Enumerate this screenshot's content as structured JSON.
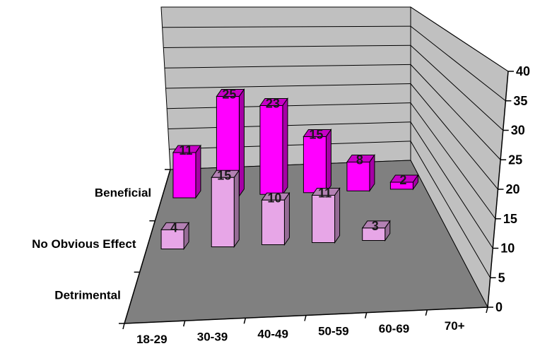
{
  "chart_data": {
    "type": "bar",
    "title": "",
    "xlabel": "",
    "ylabel": "",
    "categories": [
      "18-29",
      "30-39",
      "40-49",
      "50-59",
      "60-69",
      "70+"
    ],
    "series": [
      {
        "name": "Beneficial",
        "values": [
          11,
          25,
          23,
          15,
          8,
          2
        ]
      },
      {
        "name": "No Obvious Effect",
        "values": [
          4,
          15,
          10,
          11,
          3,
          null
        ]
      },
      {
        "name": "Detrimental",
        "values": [
          null,
          null,
          null,
          null,
          null,
          null
        ]
      }
    ],
    "ylim": [
      0,
      40
    ],
    "yticks": [
      "0",
      "5",
      "10",
      "15",
      "20",
      "25",
      "30",
      "35",
      "40"
    ],
    "grid": true,
    "colors": {
      "Beneficial": "#ff00ff",
      "No Obvious Effect": "#e7a6e7",
      "floor": "#808080",
      "walls": "#c0c0c0"
    }
  }
}
